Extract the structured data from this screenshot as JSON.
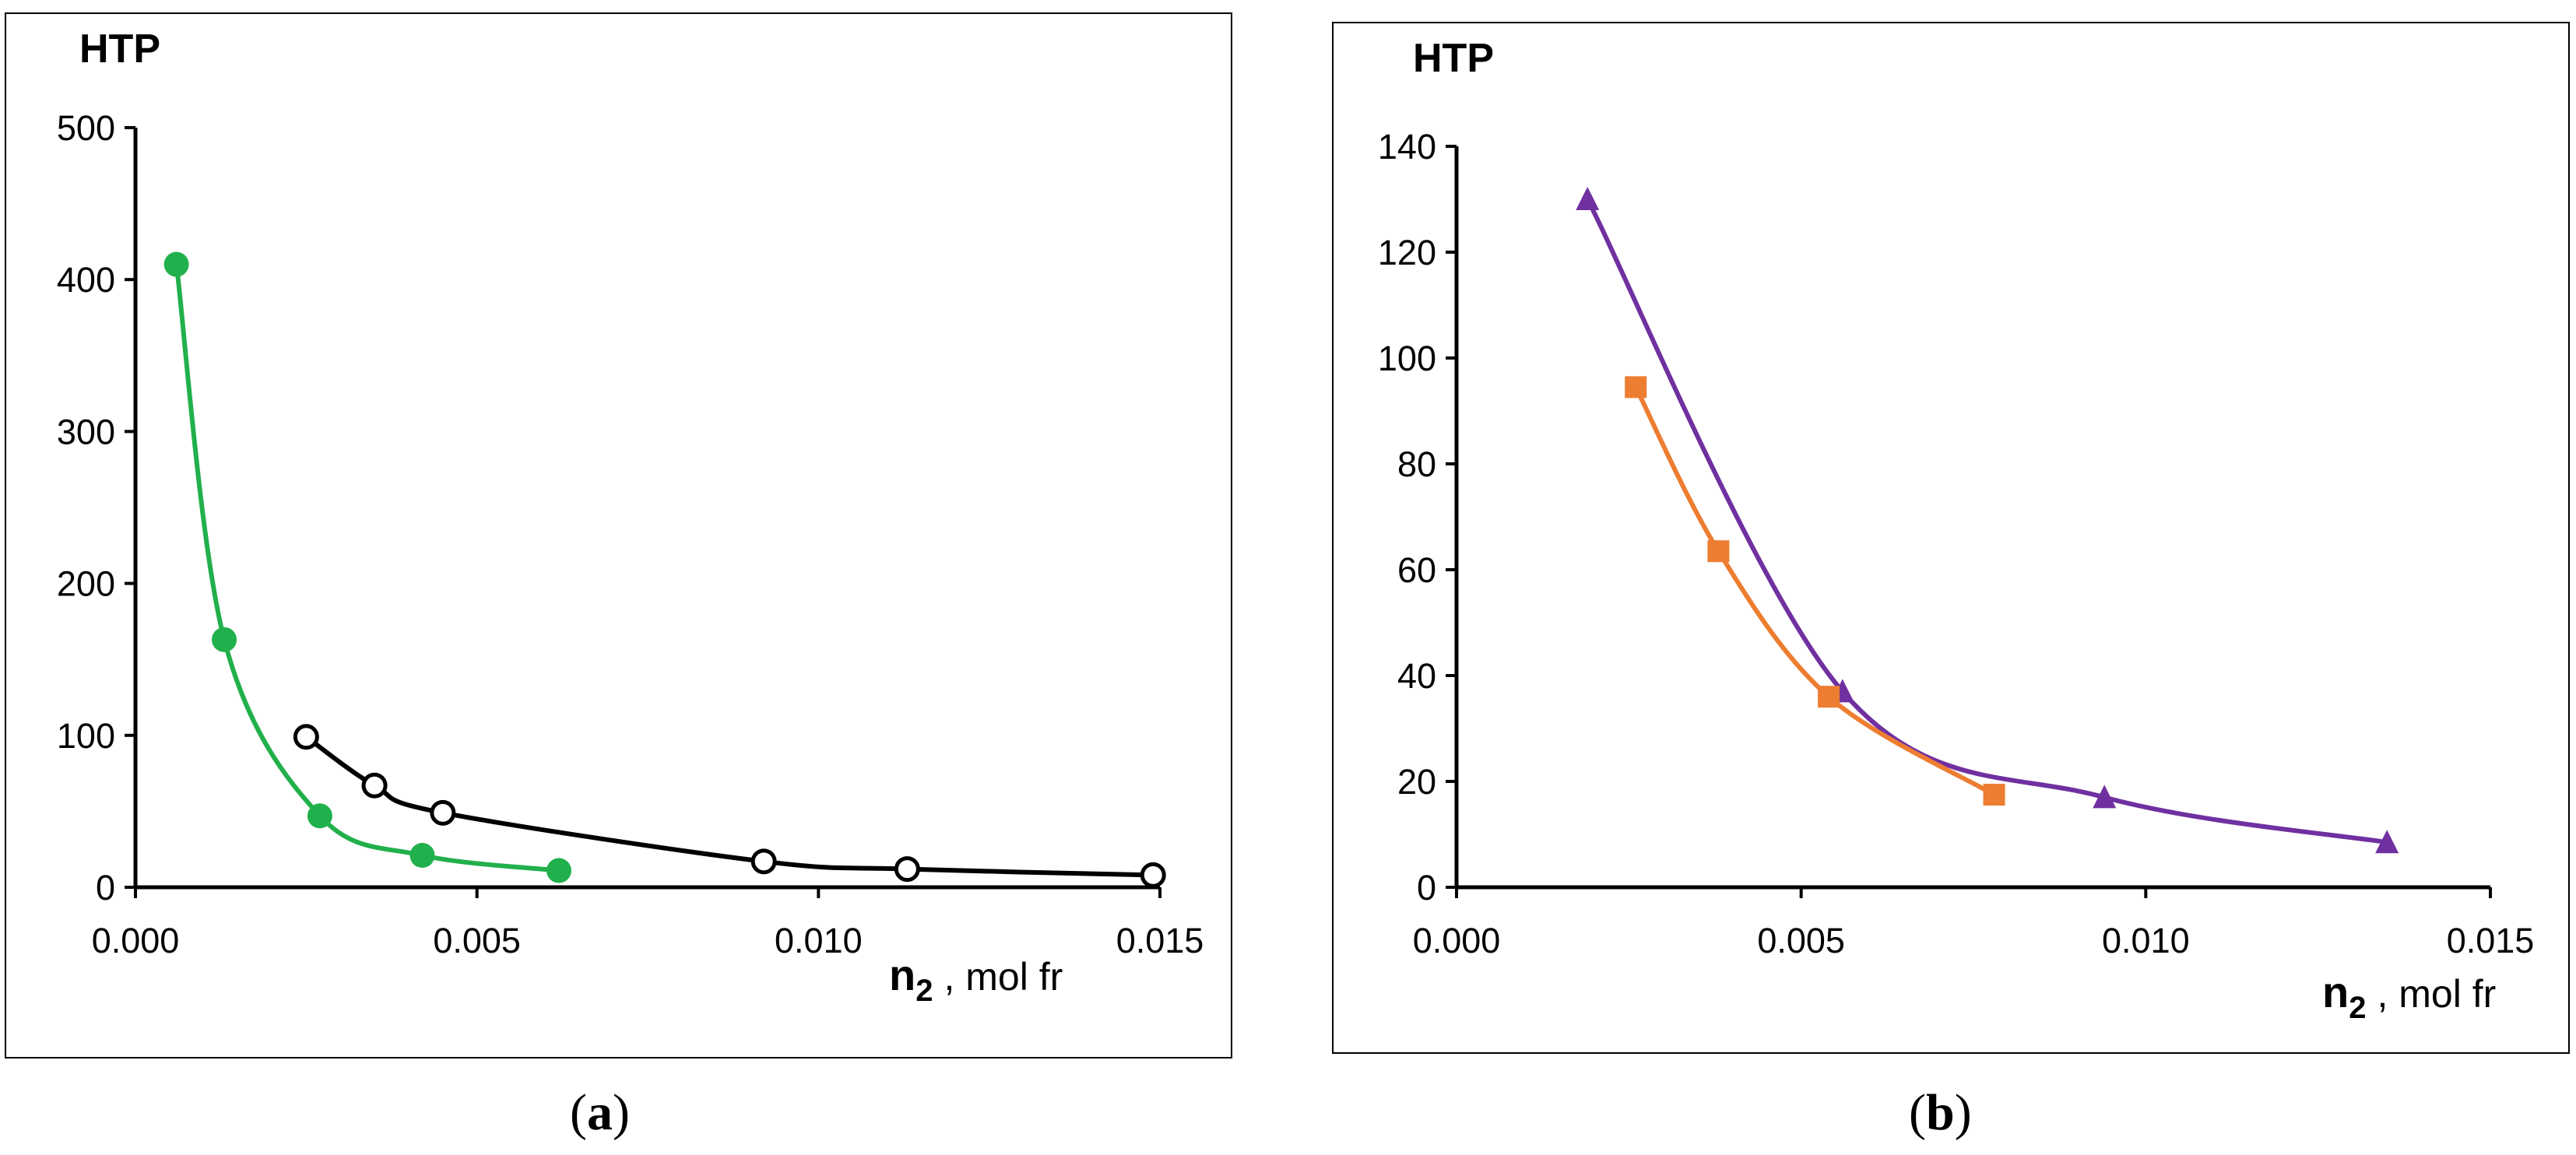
{
  "chart_data": [
    {
      "id": "a",
      "type": "line",
      "ylabel": "HTP",
      "xlabel_main": "n",
      "xlabel_sub": "2",
      "xlabel_unit": ", mol fr",
      "xlim": [
        0.0,
        0.015
      ],
      "ylim": [
        0,
        500
      ],
      "xticks": [
        "0.000",
        "0.005",
        "0.010",
        "0.015"
      ],
      "yticks": [
        "0",
        "100",
        "200",
        "300",
        "400",
        "500"
      ],
      "xtick_values": [
        0.0,
        0.005,
        0.01,
        0.015
      ],
      "ytick_values": [
        0,
        100,
        200,
        300,
        400,
        500
      ],
      "series": [
        {
          "name": "green",
          "marker": "filled-circle",
          "color": "#21b04b",
          "x": [
            0.0006,
            0.0013,
            0.0027,
            0.0042,
            0.0062
          ],
          "y": [
            410,
            163,
            47,
            21,
            11
          ]
        },
        {
          "name": "black",
          "marker": "open-circle",
          "color": "#000000",
          "x": [
            0.0025,
            0.0035,
            0.0045,
            0.0092,
            0.0113,
            0.0149
          ],
          "y": [
            99,
            67,
            49,
            17,
            12,
            8
          ]
        }
      ]
    },
    {
      "id": "b",
      "type": "line",
      "ylabel": "HTP",
      "xlabel_main": "n",
      "xlabel_sub": "2",
      "xlabel_unit": ", mol fr",
      "xlim": [
        0.0,
        0.015
      ],
      "ylim": [
        0,
        140
      ],
      "xticks": [
        "0.000",
        "0.005",
        "0.010",
        "0.015"
      ],
      "yticks": [
        "0",
        "20",
        "40",
        "60",
        "80",
        "100",
        "120",
        "140"
      ],
      "xtick_values": [
        0.0,
        0.005,
        0.01,
        0.015
      ],
      "ytick_values": [
        0,
        20,
        40,
        60,
        80,
        100,
        120,
        140
      ],
      "series": [
        {
          "name": "purple",
          "marker": "triangle",
          "color": "#7030a0",
          "x": [
            0.0019,
            0.0056,
            0.0094,
            0.0135
          ],
          "y": [
            130,
            37,
            17,
            8.5
          ]
        },
        {
          "name": "orange",
          "marker": "square",
          "color": "#ed7d31",
          "x": [
            0.0026,
            0.0038,
            0.0054,
            0.0078
          ],
          "y": [
            94.5,
            63.5,
            36,
            17.5
          ]
        }
      ]
    }
  ],
  "captions": {
    "a": "a",
    "b": "b"
  }
}
